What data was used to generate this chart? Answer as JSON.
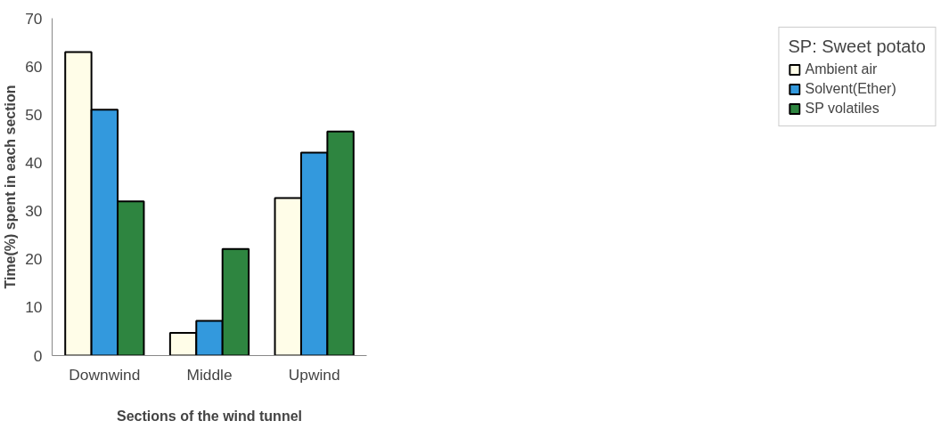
{
  "chart_data": {
    "type": "bar",
    "xlabel": "Sections of the wind tunnel",
    "ylabel": "Time(%) spent in each section",
    "legend_title": "SP: Sweet potato",
    "categories": [
      "Downwind",
      "Middle",
      "Upwind"
    ],
    "series": [
      {
        "name": "Ambient air",
        "color": "#fffde8",
        "values": [
          63,
          4.7,
          32.7
        ]
      },
      {
        "name": "Solvent(Ether)",
        "color": "#3399dd",
        "values": [
          51,
          7.2,
          42.1
        ]
      },
      {
        "name": "SP volatiles",
        "color": "#2e8540",
        "values": [
          32,
          22.1,
          46.5
        ]
      }
    ],
    "ylim": [
      0,
      70
    ],
    "yticks": [
      0,
      10,
      20,
      30,
      40,
      50,
      60,
      70
    ],
    "grid": false,
    "legend": "right"
  }
}
